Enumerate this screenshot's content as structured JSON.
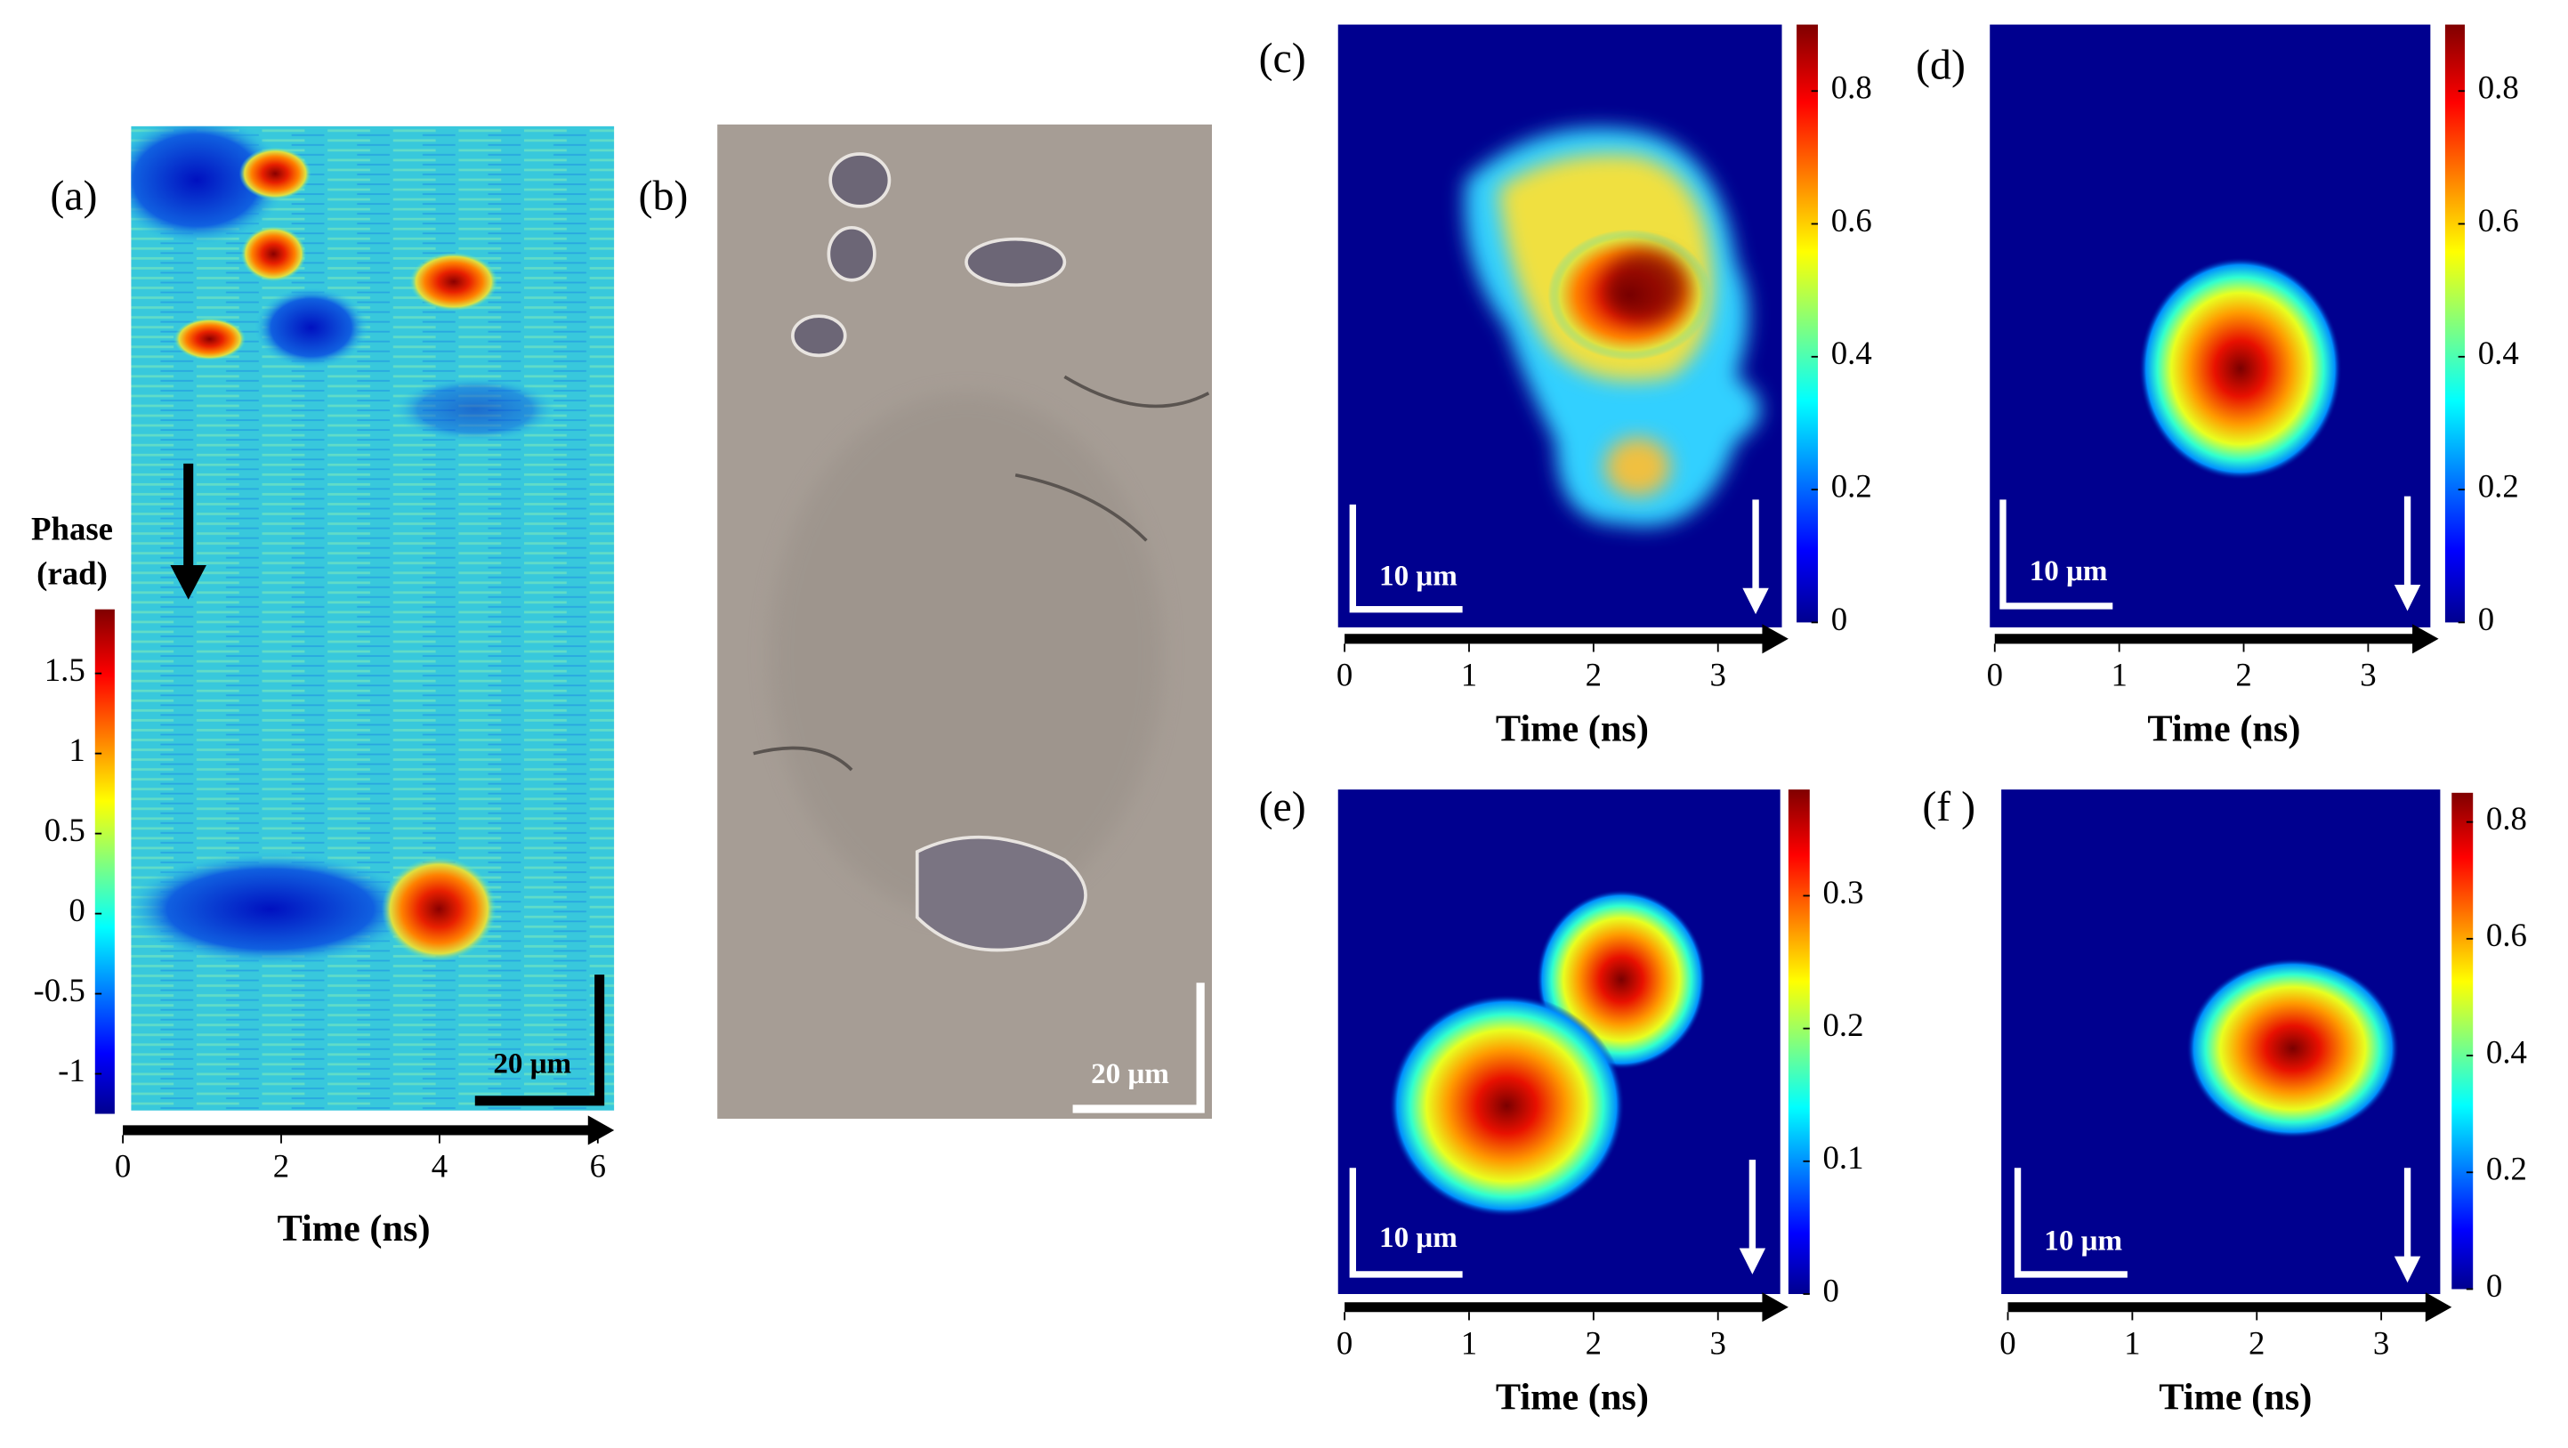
{
  "chart_data": [
    {
      "type": "heatmap",
      "panel_label": "(a)",
      "xlabel": "Time (ns)",
      "xlim": [
        0,
        6
      ],
      "xticks": [
        0,
        2,
        4,
        6
      ],
      "colorbar_label": [
        "Phase",
        "(rad)"
      ],
      "colorbar_lim": [
        -1.25,
        1.9
      ],
      "colorbar_ticks": [
        1.5,
        1,
        0.5,
        0,
        -0.5,
        -1
      ],
      "scale_bar": "20 μm"
    },
    {
      "type": "image",
      "panel_label": "(b)",
      "scale_bar": "20 μm"
    },
    {
      "type": "heatmap",
      "panel_label": "(c)",
      "xlabel": "Time (ns)",
      "xlim": [
        0,
        3.5
      ],
      "xticks": [
        0,
        1,
        2,
        3
      ],
      "colorbar_lim": [
        0,
        0.9
      ],
      "colorbar_ticks": [
        0,
        0.2,
        0.4,
        0.6,
        0.8
      ],
      "scale_bar": "10 μm"
    },
    {
      "type": "heatmap",
      "panel_label": "(d)",
      "xlabel": "Time (ns)",
      "xlim": [
        0,
        3.5
      ],
      "xticks": [
        0,
        1,
        2,
        3
      ],
      "colorbar_lim": [
        0,
        0.9
      ],
      "colorbar_ticks": [
        0,
        0.2,
        0.4,
        0.6,
        0.8
      ],
      "scale_bar": "10 μm"
    },
    {
      "type": "heatmap",
      "panel_label": "(e)",
      "xlabel": "Time (ns)",
      "xlim": [
        0,
        3.5
      ],
      "xticks": [
        0,
        1,
        2,
        3
      ],
      "colorbar_lim": [
        0,
        0.38
      ],
      "colorbar_ticks": [
        0,
        0.1,
        0.2,
        0.3
      ],
      "scale_bar": "10 μm"
    },
    {
      "type": "heatmap",
      "panel_label": "(f )",
      "xlabel": "Time (ns)",
      "xlim": [
        0,
        3.5
      ],
      "xticks": [
        0,
        1,
        2,
        3
      ],
      "colorbar_lim": [
        0,
        0.85
      ],
      "colorbar_ticks": [
        0,
        0.2,
        0.4,
        0.6,
        0.8
      ],
      "scale_bar": "10 μm"
    }
  ]
}
